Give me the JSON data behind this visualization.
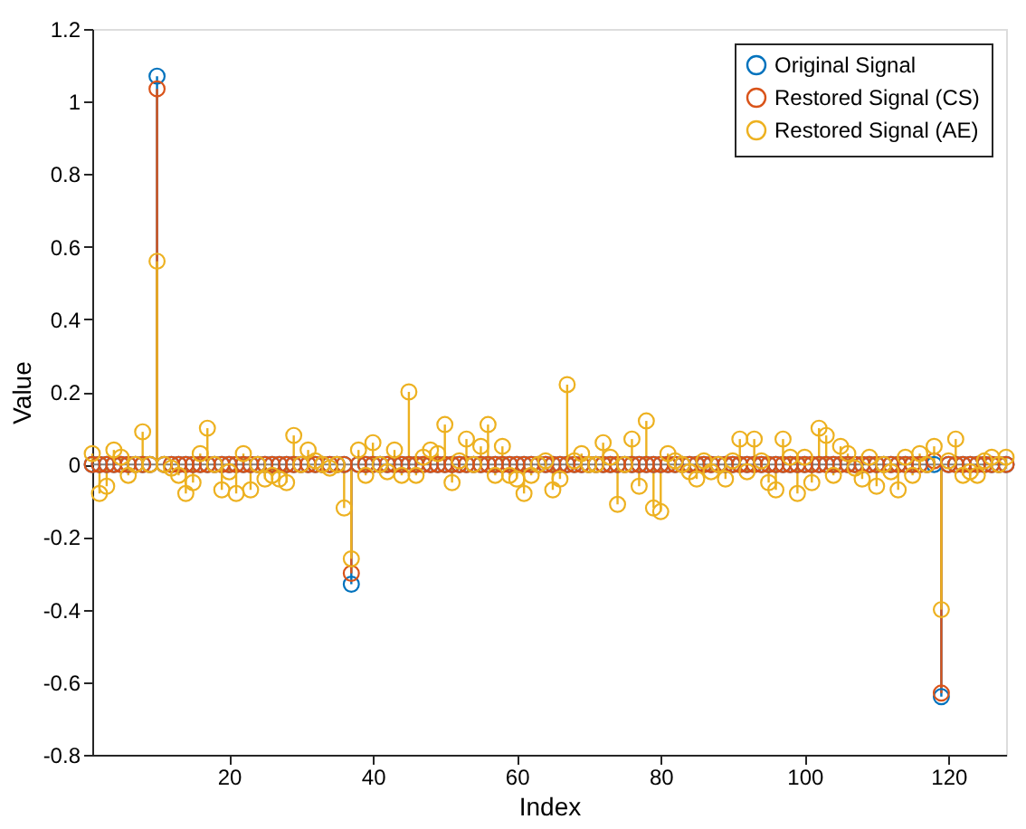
{
  "chart_data": {
    "type": "lollipop",
    "xlabel": "Index",
    "ylabel": "Value",
    "x": [
      1,
      2,
      3,
      4,
      5,
      6,
      7,
      8,
      9,
      10,
      11,
      12,
      13,
      14,
      15,
      16,
      17,
      18,
      19,
      20,
      21,
      22,
      23,
      24,
      25,
      26,
      27,
      28,
      29,
      30,
      31,
      32,
      33,
      34,
      35,
      36,
      37,
      38,
      39,
      40,
      41,
      42,
      43,
      44,
      45,
      46,
      47,
      48,
      49,
      50,
      51,
      52,
      53,
      54,
      55,
      56,
      57,
      58,
      59,
      60,
      61,
      62,
      63,
      64,
      65,
      66,
      67,
      68,
      69,
      70,
      71,
      72,
      73,
      74,
      75,
      76,
      77,
      78,
      79,
      80,
      81,
      82,
      83,
      84,
      85,
      86,
      87,
      88,
      89,
      90,
      91,
      92,
      93,
      94,
      95,
      96,
      97,
      98,
      99,
      100,
      101,
      102,
      103,
      104,
      105,
      106,
      107,
      108,
      109,
      110,
      111,
      112,
      113,
      114,
      115,
      116,
      117,
      118,
      119,
      120,
      121,
      122,
      123,
      124,
      125,
      126,
      127,
      128
    ],
    "series": [
      {
        "name": "Original Signal",
        "color": "#0072bd",
        "values": [
          0,
          0,
          0,
          0,
          0,
          0,
          0,
          0,
          0,
          1.07,
          0,
          0,
          0,
          0,
          0,
          0,
          0,
          0,
          0,
          0,
          0,
          0,
          0,
          0,
          0,
          0,
          0,
          0,
          0,
          0,
          0,
          0,
          0,
          0,
          0,
          0,
          -0.33,
          0,
          0,
          0,
          0,
          0,
          0,
          0,
          0,
          0,
          0,
          0,
          0,
          0,
          0,
          0,
          0,
          0,
          0,
          0,
          0,
          0,
          0,
          0,
          0,
          0,
          0,
          0,
          0,
          0,
          0,
          0,
          0,
          0,
          0,
          0,
          0,
          0,
          0,
          0,
          0,
          0,
          0,
          0,
          0,
          0,
          0,
          0,
          0,
          0,
          0,
          0,
          0,
          0,
          0,
          0,
          0,
          0,
          0,
          0,
          0,
          0,
          0,
          0,
          0,
          0,
          0,
          0,
          0,
          0,
          0,
          0,
          0,
          0,
          0,
          0,
          0,
          0,
          0,
          0,
          0,
          0,
          -0.64,
          0,
          0,
          0,
          0,
          0,
          0,
          0,
          0,
          0
        ]
      },
      {
        "name": "Restored Signal (CS)",
        "color": "#d95319",
        "values": [
          0,
          0,
          0,
          0,
          0,
          0,
          0,
          0,
          0,
          1.035,
          0,
          0,
          0,
          0,
          0,
          0,
          0,
          0,
          0,
          0,
          0,
          0,
          0,
          0,
          0,
          0,
          0,
          0,
          0,
          0,
          0,
          0,
          0,
          0,
          0,
          0,
          -0.3,
          0,
          0,
          0,
          0,
          0,
          0,
          0,
          0,
          0,
          0,
          0,
          0,
          0,
          0,
          0,
          0,
          0,
          0,
          0,
          0,
          0,
          0,
          0,
          0,
          0,
          0,
          0,
          0,
          0,
          0,
          0,
          0,
          0,
          0,
          0,
          0,
          0,
          0,
          0,
          0,
          0,
          0,
          0,
          0,
          0,
          0,
          0,
          0,
          0,
          0,
          0,
          0,
          0,
          0,
          0,
          0,
          0,
          0,
          0,
          0,
          0,
          0,
          0,
          0,
          0,
          0,
          0,
          0,
          0,
          0,
          0,
          0,
          0,
          0,
          0,
          0,
          0,
          0,
          0,
          0,
          0.01,
          -0.63,
          0,
          0,
          0,
          0,
          0,
          0,
          0,
          0,
          0
        ]
      },
      {
        "name": "Restored Signal (AE)",
        "color": "#edb120",
        "values": [
          0.03,
          -0.08,
          -0.06,
          0.04,
          0.02,
          -0.03,
          0,
          0.09,
          0,
          0.56,
          0,
          -0.01,
          -0.03,
          -0.08,
          -0.05,
          0.03,
          0.1,
          0,
          -0.07,
          -0.02,
          -0.08,
          0.03,
          -0.07,
          0,
          -0.04,
          -0.03,
          -0.04,
          -0.05,
          0.08,
          0,
          0.04,
          0.01,
          0,
          -0.01,
          0,
          -0.12,
          -0.26,
          0.04,
          -0.03,
          0.06,
          0,
          -0.02,
          0.04,
          -0.03,
          0.2,
          -0.03,
          0.02,
          0.04,
          0.03,
          0.11,
          -0.05,
          0.01,
          0.07,
          0,
          0.05,
          0.11,
          -0.03,
          0.05,
          -0.03,
          -0.04,
          -0.08,
          -0.03,
          0,
          0.01,
          -0.07,
          -0.04,
          0.22,
          0.01,
          0.03,
          0,
          0,
          0.06,
          0.02,
          -0.11,
          0,
          0.07,
          -0.06,
          0.12,
          -0.12,
          -0.13,
          0.03,
          0.01,
          0,
          -0.02,
          -0.04,
          0.01,
          -0.02,
          0,
          -0.04,
          0.01,
          0.07,
          -0.02,
          0.07,
          0.01,
          -0.05,
          -0.07,
          0.07,
          0.02,
          -0.08,
          0.02,
          -0.05,
          0.1,
          0.08,
          -0.03,
          0.05,
          0.03,
          -0.01,
          -0.04,
          0.02,
          -0.06,
          0,
          -0.02,
          -0.07,
          0.02,
          -0.03,
          0.03,
          0,
          0.05,
          -0.4,
          0.01,
          0.07,
          -0.03,
          -0.02,
          -0.03,
          0.01,
          0.02,
          0,
          0.02
        ]
      }
    ],
    "xlim": [
      1,
      128
    ],
    "xticks": [
      20,
      40,
      60,
      80,
      100,
      120
    ],
    "ylim": [
      -0.8,
      1.2
    ],
    "yticks": [
      -0.8,
      -0.6,
      -0.4,
      -0.2,
      0,
      0.2,
      0.4,
      0.6,
      0.8,
      1,
      1.2
    ],
    "ref_lines": [
      {
        "axis": "y",
        "value": 0,
        "color": "#808080"
      }
    ],
    "marker": "circle",
    "grid": false,
    "legend": "top right"
  }
}
